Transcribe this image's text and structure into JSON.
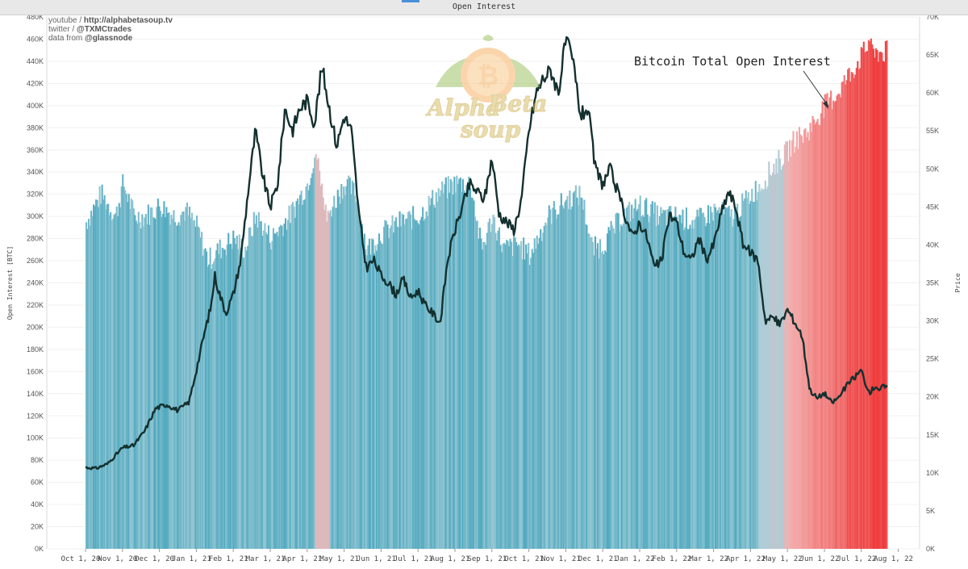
{
  "window_title": "Open Interest",
  "credits": {
    "line1_prefix": "youtube / ",
    "line1_link": "http://alphabetasoup.tv",
    "line2_prefix": "twitter / ",
    "line2_link": "@TXMCtrades",
    "line3_prefix": "data from ",
    "line3_link": "@glassnode"
  },
  "logo": {
    "word1": "Alpha",
    "word2": "Beta",
    "word3": "soup",
    "coin_symbol": "₿"
  },
  "colors": {
    "bar_teal": "#4fa9bf",
    "bar_light": "#a9cfd9",
    "bar_pink": "#f3b0b0",
    "bar_red": "#ef3b3b",
    "price_line": "#13302f"
  },
  "chart_data": {
    "type": "bar",
    "title": "Open Interest",
    "annotation": "Bitcoin Total Open Interest",
    "ylabel": "Open Interest [BTC]",
    "y2label": "Price",
    "ylim": [
      0,
      480000
    ],
    "y2lim": [
      0,
      70000
    ],
    "yticks": [
      "0K",
      "20K",
      "40K",
      "60K",
      "80K",
      "100K",
      "120K",
      "140K",
      "160K",
      "180K",
      "200K",
      "220K",
      "240K",
      "260K",
      "280K",
      "300K",
      "320K",
      "340K",
      "360K",
      "380K",
      "400K",
      "420K",
      "440K",
      "460K",
      "480K"
    ],
    "y2ticks": [
      "0K",
      "5K",
      "10K",
      "15K",
      "20K",
      "25K",
      "30K",
      "35K",
      "40K",
      "45K",
      "50K",
      "55K",
      "60K",
      "65K",
      "70K"
    ],
    "xticks": [
      "Oct 1, 20",
      "Nov 1, 20",
      "Dec 1, 20",
      "Jan 1, 21",
      "Feb 1, 21",
      "Mar 1, 21",
      "Apr 1, 21",
      "May 1, 21",
      "Jun 1, 21",
      "Jul 1, 21",
      "Aug 1, 21",
      "Sep 1, 21",
      "Oct 1, 21",
      "Nov 1, 21",
      "Dec 1, 21",
      "Jan 1, 22",
      "Feb 1, 22",
      "Mar 1, 22",
      "Apr 1, 22",
      "May 1, 22",
      "Jun 1, 22",
      "Jul 1, 22",
      "Aug 1, 22"
    ],
    "x_start_month": 0,
    "x_end_month": 21.7,
    "open_interest_keypoints": [
      [
        0,
        295000
      ],
      [
        0.4,
        320000
      ],
      [
        0.8,
        300000
      ],
      [
        1.0,
        330000
      ],
      [
        1.3,
        300000
      ],
      [
        1.6,
        300000
      ],
      [
        2.0,
        310000
      ],
      [
        2.4,
        300000
      ],
      [
        2.7,
        305000
      ],
      [
        3.0,
        290000
      ],
      [
        3.3,
        260000
      ],
      [
        3.6,
        270000
      ],
      [
        4.0,
        280000
      ],
      [
        4.3,
        270000
      ],
      [
        4.6,
        300000
      ],
      [
        5.0,
        280000
      ],
      [
        5.5,
        300000
      ],
      [
        6.0,
        330000
      ],
      [
        6.2,
        360000
      ],
      [
        6.5,
        300000
      ],
      [
        7.0,
        330000
      ],
      [
        7.3,
        320000
      ],
      [
        7.6,
        270000
      ],
      [
        8.0,
        285000
      ],
      [
        8.5,
        295000
      ],
      [
        9.0,
        300000
      ],
      [
        9.5,
        320000
      ],
      [
        10.0,
        330000
      ],
      [
        10.4,
        330000
      ],
      [
        10.7,
        270000
      ],
      [
        11.0,
        300000
      ],
      [
        11.3,
        270000
      ],
      [
        11.7,
        275000
      ],
      [
        12.0,
        265000
      ],
      [
        12.5,
        300000
      ],
      [
        13.0,
        315000
      ],
      [
        13.4,
        320000
      ],
      [
        13.7,
        270000
      ],
      [
        14.0,
        275000
      ],
      [
        14.5,
        300000
      ],
      [
        15.0,
        310000
      ],
      [
        15.5,
        300000
      ],
      [
        16.0,
        300000
      ],
      [
        16.5,
        295000
      ],
      [
        17.0,
        305000
      ],
      [
        17.5,
        300000
      ],
      [
        18.0,
        320000
      ],
      [
        18.3,
        330000
      ],
      [
        18.6,
        345000
      ],
      [
        18.9,
        355000
      ],
      [
        19.2,
        370000
      ],
      [
        19.5,
        375000
      ],
      [
        19.8,
        390000
      ],
      [
        20.0,
        400000
      ],
      [
        20.3,
        410000
      ],
      [
        20.6,
        425000
      ],
      [
        20.9,
        440000
      ],
      [
        21.1,
        450000
      ],
      [
        21.25,
        465000
      ],
      [
        21.3,
        440000
      ],
      [
        21.4,
        448000
      ]
    ],
    "price_line_keypoints": [
      [
        0,
        10700
      ],
      [
        0.3,
        10600
      ],
      [
        0.6,
        11200
      ],
      [
        1.0,
        13300
      ],
      [
        1.3,
        13600
      ],
      [
        1.6,
        15500
      ],
      [
        1.9,
        18500
      ],
      [
        2.2,
        19000
      ],
      [
        2.5,
        18200
      ],
      [
        2.8,
        19300
      ],
      [
        3.0,
        23500
      ],
      [
        3.2,
        28000
      ],
      [
        3.4,
        32000
      ],
      [
        3.5,
        36000
      ],
      [
        3.6,
        34000
      ],
      [
        3.8,
        31000
      ],
      [
        4.0,
        33500
      ],
      [
        4.2,
        38000
      ],
      [
        4.4,
        47000
      ],
      [
        4.6,
        55000
      ],
      [
        4.8,
        49000
      ],
      [
        5.0,
        45000
      ],
      [
        5.2,
        48000
      ],
      [
        5.4,
        58000
      ],
      [
        5.6,
        55000
      ],
      [
        5.8,
        58000
      ],
      [
        6.0,
        59000
      ],
      [
        6.2,
        56000
      ],
      [
        6.4,
        63500
      ],
      [
        6.6,
        58000
      ],
      [
        6.8,
        53000
      ],
      [
        7.0,
        57000
      ],
      [
        7.2,
        55000
      ],
      [
        7.4,
        44000
      ],
      [
        7.6,
        37000
      ],
      [
        7.8,
        38000
      ],
      [
        8.0,
        36000
      ],
      [
        8.2,
        35000
      ],
      [
        8.4,
        33500
      ],
      [
        8.6,
        35500
      ],
      [
        8.8,
        33000
      ],
      [
        9.0,
        34000
      ],
      [
        9.2,
        32000
      ],
      [
        9.4,
        31000
      ],
      [
        9.6,
        29700
      ],
      [
        9.8,
        38000
      ],
      [
        10.0,
        42000
      ],
      [
        10.2,
        45000
      ],
      [
        10.4,
        48000
      ],
      [
        10.6,
        47000
      ],
      [
        10.8,
        46000
      ],
      [
        11.0,
        51500
      ],
      [
        11.2,
        44000
      ],
      [
        11.4,
        43000
      ],
      [
        11.6,
        42000
      ],
      [
        11.8,
        46000
      ],
      [
        12.0,
        55000
      ],
      [
        12.2,
        60000
      ],
      [
        12.4,
        62000
      ],
      [
        12.6,
        63000
      ],
      [
        12.8,
        60000
      ],
      [
        13.0,
        67000
      ],
      [
        13.2,
        64000
      ],
      [
        13.4,
        57000
      ],
      [
        13.6,
        58000
      ],
      [
        13.8,
        50000
      ],
      [
        14.0,
        48000
      ],
      [
        14.2,
        50000
      ],
      [
        14.4,
        47000
      ],
      [
        14.6,
        44000
      ],
      [
        14.8,
        41000
      ],
      [
        15.0,
        43000
      ],
      [
        15.2,
        41000
      ],
      [
        15.4,
        37000
      ],
      [
        15.6,
        38000
      ],
      [
        15.8,
        44000
      ],
      [
        16.0,
        43000
      ],
      [
        16.2,
        39000
      ],
      [
        16.4,
        38000
      ],
      [
        16.6,
        41000
      ],
      [
        16.8,
        38000
      ],
      [
        17.0,
        40000
      ],
      [
        17.2,
        44000
      ],
      [
        17.4,
        47000
      ],
      [
        17.6,
        45000
      ],
      [
        17.8,
        40000
      ],
      [
        18.0,
        39000
      ],
      [
        18.2,
        38000
      ],
      [
        18.4,
        30000
      ],
      [
        18.6,
        30500
      ],
      [
        18.8,
        29500
      ],
      [
        19.0,
        31500
      ],
      [
        19.2,
        29800
      ],
      [
        19.4,
        28000
      ],
      [
        19.6,
        21000
      ],
      [
        19.8,
        19800
      ],
      [
        20.0,
        20500
      ],
      [
        20.2,
        19200
      ],
      [
        20.4,
        20000
      ],
      [
        20.6,
        21500
      ],
      [
        20.8,
        22500
      ],
      [
        21.0,
        23500
      ],
      [
        21.2,
        20500
      ],
      [
        21.4,
        21500
      ],
      [
        21.5,
        20800
      ],
      [
        21.6,
        21500
      ],
      [
        21.7,
        21000
      ]
    ]
  }
}
